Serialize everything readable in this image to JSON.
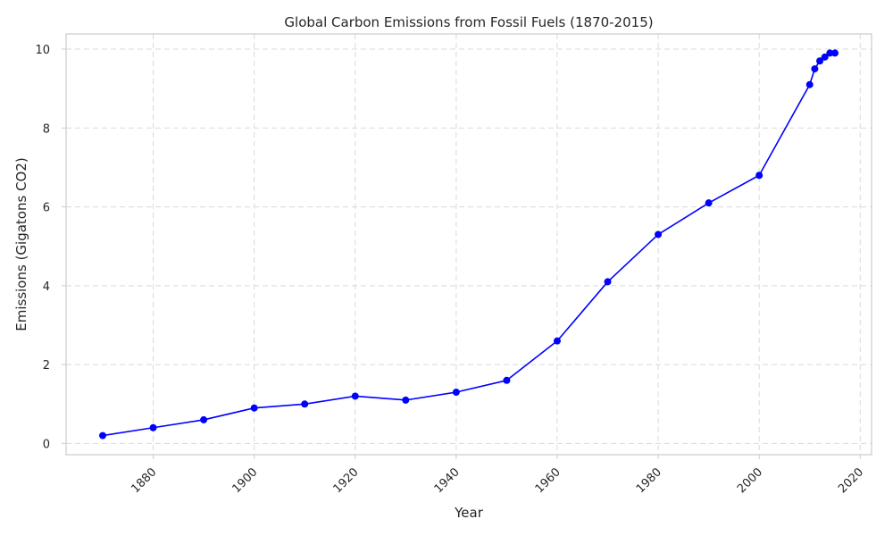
{
  "chart_data": {
    "type": "line",
    "title": "Global Carbon Emissions from Fossil Fuels (1870-2015)",
    "xlabel": "Year",
    "ylabel": "Emissions (Gigatons CO2)",
    "xlim": [
      1862.75,
      2022.25
    ],
    "ylim": [
      -0.285,
      10.385
    ],
    "xticks": [
      1880,
      1900,
      1920,
      1940,
      1960,
      1980,
      2000,
      2020
    ],
    "yticks": [
      0,
      2,
      4,
      6,
      8,
      10
    ],
    "grid": true,
    "line_color": "#0000ff",
    "series": [
      {
        "x": [
          1870,
          1880,
          1890,
          1900,
          1910,
          1920,
          1930,
          1940,
          1950,
          1960,
          1970,
          1980,
          1990,
          2000,
          2010,
          2011,
          2012,
          2013,
          2014,
          2015
        ],
        "values": [
          0.2,
          0.4,
          0.6,
          0.9,
          1.0,
          1.2,
          1.1,
          1.3,
          1.6,
          2.6,
          4.1,
          5.3,
          6.1,
          6.8,
          9.1,
          9.5,
          9.7,
          9.8,
          9.9,
          9.9
        ]
      }
    ]
  }
}
